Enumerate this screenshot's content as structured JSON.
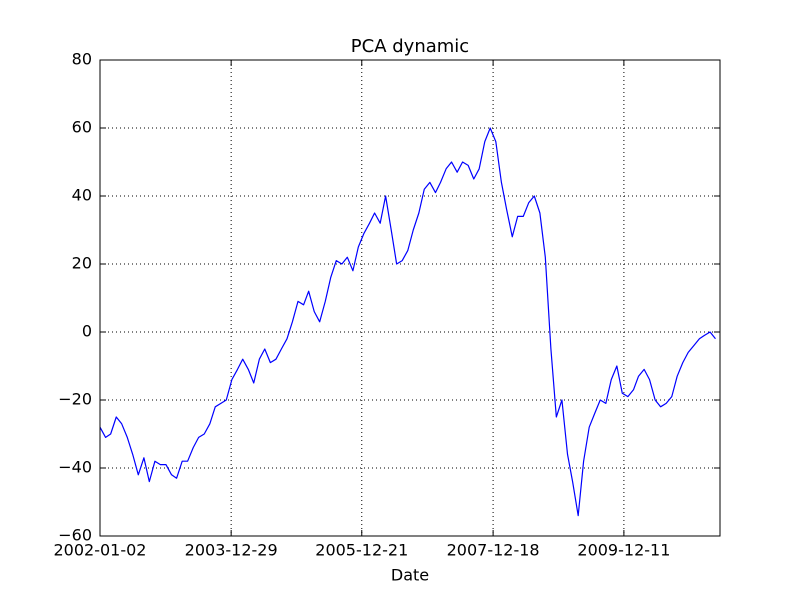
{
  "chart_data": {
    "type": "line",
    "title": "PCA dynamic",
    "x_label": "Date",
    "color": "#0000ff",
    "grid": true,
    "xlim": [
      "2002-01-02",
      "2011-05-27"
    ],
    "xticks": [
      "2002-01-02",
      "2003-12-29",
      "2005-12-21",
      "2007-12-18",
      "2009-12-11"
    ],
    "ylim": [
      -60,
      80
    ],
    "yticks": [
      {
        "value": -60,
        "label": "−60"
      },
      {
        "value": -40,
        "label": "−40"
      },
      {
        "value": -20,
        "label": "−20"
      },
      0,
      20,
      40,
      60,
      80
    ],
    "x": [
      "2002-01-02",
      "2002-02-02",
      "2002-03-02",
      "2002-04-02",
      "2002-05-02",
      "2002-06-02",
      "2002-07-02",
      "2002-08-02",
      "2002-09-02",
      "2002-10-02",
      "2002-11-02",
      "2002-12-02",
      "2003-01-02",
      "2003-02-02",
      "2003-03-02",
      "2003-04-02",
      "2003-05-02",
      "2003-06-02",
      "2003-07-02",
      "2003-08-02",
      "2003-09-02",
      "2003-10-02",
      "2003-11-02",
      "2003-12-02",
      "2004-01-02",
      "2004-02-02",
      "2004-03-02",
      "2004-04-02",
      "2004-05-02",
      "2004-06-02",
      "2004-07-02",
      "2004-08-02",
      "2004-09-02",
      "2004-10-02",
      "2004-11-02",
      "2004-12-02",
      "2005-01-02",
      "2005-02-02",
      "2005-03-02",
      "2005-04-02",
      "2005-05-02",
      "2005-06-02",
      "2005-07-02",
      "2005-08-02",
      "2005-09-02",
      "2005-10-02",
      "2005-11-02",
      "2005-12-02",
      "2006-01-02",
      "2006-02-02",
      "2006-03-02",
      "2006-04-02",
      "2006-05-02",
      "2006-06-02",
      "2006-07-02",
      "2006-08-02",
      "2006-09-02",
      "2006-10-02",
      "2006-11-02",
      "2006-12-02",
      "2007-01-02",
      "2007-02-02",
      "2007-03-02",
      "2007-04-02",
      "2007-05-02",
      "2007-06-02",
      "2007-07-02",
      "2007-08-02",
      "2007-09-02",
      "2007-10-02",
      "2007-11-02",
      "2007-12-02",
      "2008-01-02",
      "2008-02-02",
      "2008-03-02",
      "2008-04-02",
      "2008-05-02",
      "2008-06-02",
      "2008-07-02",
      "2008-08-02",
      "2008-09-02",
      "2008-10-02",
      "2008-11-02",
      "2008-12-02",
      "2009-01-02",
      "2009-02-02",
      "2009-03-02",
      "2009-04-02",
      "2009-05-02",
      "2009-06-02",
      "2009-07-02",
      "2009-08-02",
      "2009-09-02",
      "2009-10-02",
      "2009-11-02",
      "2009-12-02",
      "2010-01-02",
      "2010-02-02",
      "2010-03-02",
      "2010-04-02",
      "2010-05-02",
      "2010-06-02",
      "2010-07-02",
      "2010-08-02",
      "2010-09-02",
      "2010-10-02",
      "2010-11-02",
      "2010-12-02",
      "2011-01-02",
      "2011-02-02",
      "2011-03-02",
      "2011-04-02",
      "2011-05-02"
    ],
    "values": [
      -28,
      -31,
      -30,
      -25,
      -27,
      -31,
      -36,
      -42,
      -37,
      -44,
      -38,
      -39,
      -39,
      -42,
      -43,
      -38,
      -38,
      -34,
      -31,
      -30,
      -27,
      -22,
      -21,
      -20,
      -14,
      -11,
      -8,
      -11,
      -15,
      -8,
      -5,
      -9,
      -8,
      -5,
      -2,
      3,
      9,
      8,
      12,
      6,
      3,
      9,
      16,
      21,
      20,
      22,
      18,
      25,
      29,
      32,
      35,
      32,
      40,
      30,
      20,
      21,
      24,
      30,
      35,
      42,
      44,
      41,
      44,
      48,
      50,
      47,
      50,
      49,
      45,
      48,
      56,
      60,
      56,
      44,
      36,
      28,
      34,
      34,
      38,
      40,
      35,
      22,
      -5,
      -25,
      -20,
      -36,
      -44,
      -54,
      -38,
      -28,
      -24,
      -20,
      -21,
      -14,
      -10,
      -18,
      -19,
      -17,
      -13,
      -11,
      -14,
      -20,
      -22,
      -21,
      -19,
      -13,
      -9,
      -6,
      -4,
      -2,
      -1,
      0,
      -2
    ]
  }
}
